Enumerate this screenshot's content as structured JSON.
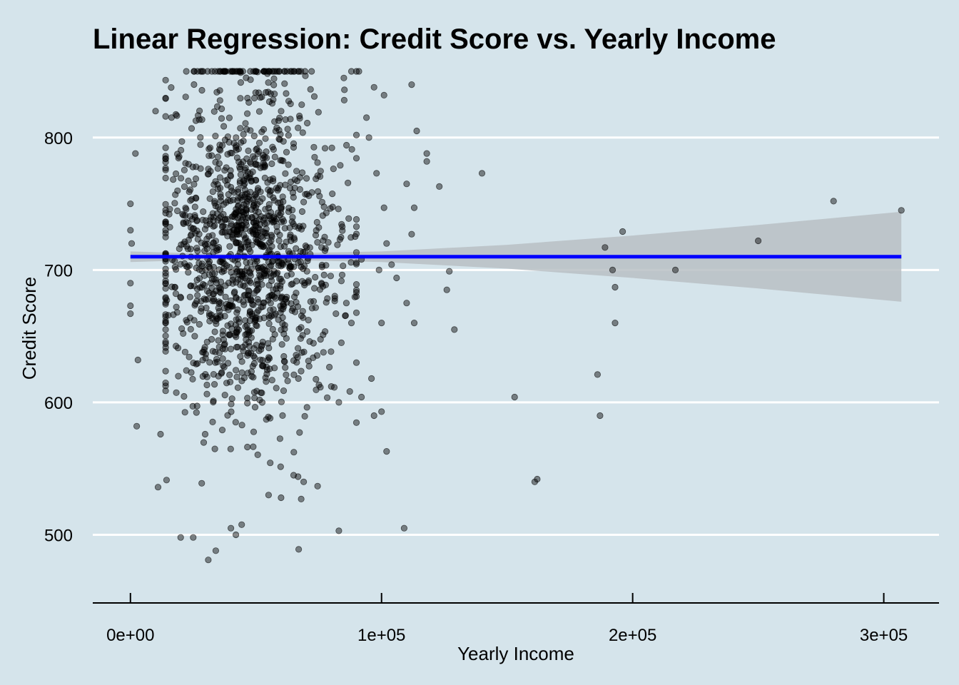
{
  "chart_data": {
    "type": "scatter",
    "title": "Linear Regression: Credit Score vs. Yearly Income",
    "xlabel": "Yearly Income",
    "ylabel": "Credit Score",
    "xlim": [
      -15000,
      322000
    ],
    "ylim": [
      462,
      850
    ],
    "x_ticks": [
      {
        "value": 0,
        "label": "0e+00"
      },
      {
        "value": 100000,
        "label": "1e+05"
      },
      {
        "value": 200000,
        "label": "2e+05"
      },
      {
        "value": 300000,
        "label": "3e+05"
      }
    ],
    "y_ticks": [
      {
        "value": 500,
        "label": "500"
      },
      {
        "value": 600,
        "label": "600"
      },
      {
        "value": 700,
        "label": "700"
      },
      {
        "value": 800,
        "label": "800"
      }
    ],
    "grid": {
      "horizontal_major": true,
      "vertical": false,
      "color": "#ffffff"
    },
    "background_color": "#d5e4eb",
    "point_color": "#000000",
    "point_alpha": 0.45,
    "regression_line": {
      "color": "#0000ff",
      "x": [
        0,
        307000
      ],
      "y": [
        710,
        710
      ]
    },
    "confidence_band": {
      "color": "#b8bfc4",
      "x": [
        0,
        40000,
        100000,
        150000,
        200000,
        250000,
        307000
      ],
      "upper": [
        714,
        711.8,
        714,
        719,
        726,
        734,
        744
      ],
      "lower": [
        706,
        708.2,
        706,
        701,
        694,
        686,
        676
      ]
    },
    "outlier_points": [
      {
        "x": 0,
        "y": 750
      },
      {
        "x": 0,
        "y": 730
      },
      {
        "x": 500,
        "y": 720
      },
      {
        "x": 0,
        "y": 690
      },
      {
        "x": 0,
        "y": 673
      },
      {
        "x": 0,
        "y": 667
      },
      {
        "x": 2000,
        "y": 788
      },
      {
        "x": 3000,
        "y": 632
      },
      {
        "x": 2500,
        "y": 582
      },
      {
        "x": 11000,
        "y": 536
      },
      {
        "x": 12000,
        "y": 576
      },
      {
        "x": 10000,
        "y": 820
      },
      {
        "x": 20000,
        "y": 498
      },
      {
        "x": 25000,
        "y": 498
      },
      {
        "x": 31000,
        "y": 481
      },
      {
        "x": 34000,
        "y": 488
      },
      {
        "x": 40000,
        "y": 505
      },
      {
        "x": 42000,
        "y": 500
      },
      {
        "x": 67000,
        "y": 489
      },
      {
        "x": 83000,
        "y": 503
      },
      {
        "x": 109000,
        "y": 505
      },
      {
        "x": 69000,
        "y": 540
      },
      {
        "x": 68000,
        "y": 527
      },
      {
        "x": 65000,
        "y": 545
      },
      {
        "x": 55000,
        "y": 530
      },
      {
        "x": 60000,
        "y": 528
      },
      {
        "x": 95000,
        "y": 800
      },
      {
        "x": 96000,
        "y": 618
      },
      {
        "x": 97000,
        "y": 590
      },
      {
        "x": 100000,
        "y": 593
      },
      {
        "x": 102000,
        "y": 563
      },
      {
        "x": 100000,
        "y": 660
      },
      {
        "x": 101000,
        "y": 747
      },
      {
        "x": 102000,
        "y": 720
      },
      {
        "x": 104000,
        "y": 704
      },
      {
        "x": 106000,
        "y": 694
      },
      {
        "x": 110000,
        "y": 765
      },
      {
        "x": 110000,
        "y": 675
      },
      {
        "x": 112000,
        "y": 727
      },
      {
        "x": 113000,
        "y": 660
      },
      {
        "x": 113000,
        "y": 747
      },
      {
        "x": 114000,
        "y": 805
      },
      {
        "x": 112000,
        "y": 840
      },
      {
        "x": 118000,
        "y": 788
      },
      {
        "x": 118000,
        "y": 782
      },
      {
        "x": 123000,
        "y": 763
      },
      {
        "x": 126000,
        "y": 685
      },
      {
        "x": 127000,
        "y": 699
      },
      {
        "x": 129000,
        "y": 655
      },
      {
        "x": 140000,
        "y": 773
      },
      {
        "x": 153000,
        "y": 604
      },
      {
        "x": 161000,
        "y": 540
      },
      {
        "x": 162000,
        "y": 542
      },
      {
        "x": 186000,
        "y": 621
      },
      {
        "x": 187000,
        "y": 590
      },
      {
        "x": 189000,
        "y": 717
      },
      {
        "x": 192000,
        "y": 700
      },
      {
        "x": 193000,
        "y": 687
      },
      {
        "x": 193000,
        "y": 660
      },
      {
        "x": 196000,
        "y": 729
      },
      {
        "x": 217000,
        "y": 700
      },
      {
        "x": 250000,
        "y": 722
      },
      {
        "x": 280000,
        "y": 752
      },
      {
        "x": 307000,
        "y": 745
      },
      {
        "x": 88000,
        "y": 850
      },
      {
        "x": 91000,
        "y": 850
      },
      {
        "x": 85000,
        "y": 845
      },
      {
        "x": 97000,
        "y": 838
      },
      {
        "x": 101000,
        "y": 832
      },
      {
        "x": 94000,
        "y": 815
      },
      {
        "x": 98000,
        "y": 773
      },
      {
        "x": 99000,
        "y": 700
      },
      {
        "x": 92000,
        "y": 708
      },
      {
        "x": 90000,
        "y": 680
      },
      {
        "x": 86000,
        "y": 675
      },
      {
        "x": 88000,
        "y": 660
      },
      {
        "x": 84000,
        "y": 645
      },
      {
        "x": 90000,
        "y": 630
      },
      {
        "x": 92000,
        "y": 604
      },
      {
        "x": 83000,
        "y": 600
      },
      {
        "x": 80000,
        "y": 612
      }
    ],
    "cluster": {
      "n": 1350,
      "x_mean": 42000,
      "x_sd": 17000,
      "y_mean": 710,
      "y_sd": 62,
      "seed": 7
    }
  }
}
